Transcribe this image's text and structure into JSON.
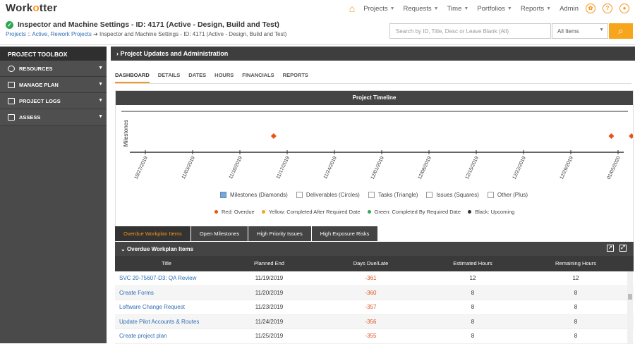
{
  "app": {
    "logo_prefix": "Work",
    "logo_o": "o",
    "logo_suffix": "tter"
  },
  "nav": {
    "items": [
      "Projects",
      "Requests",
      "Time",
      "Portfolios",
      "Reports"
    ],
    "user": "Admin"
  },
  "header": {
    "title": "Inspector and Machine Settings - ID: 4171 (Active - Design, Build and Test)",
    "crumb_root": "Projects",
    "crumb_sep": "::",
    "crumb_link": "Active, Rework Projects",
    "crumb_current": "Inspector and Machine Settings - ID: 4171 (Active - Design, Build and Test)"
  },
  "search": {
    "placeholder": "Search by ID, Title, Desc or Leave Blank (All)",
    "scope": "All Items"
  },
  "sidebar": {
    "title": "PROJECT TOOLBOX",
    "items": [
      {
        "label": "RESOURCES",
        "icon": "clock-icon"
      },
      {
        "label": "MANAGE PLAN",
        "icon": "plan-icon"
      },
      {
        "label": "PROJECT LOGS",
        "icon": "log-icon"
      },
      {
        "label": "ASSESS",
        "icon": "chart-icon"
      }
    ]
  },
  "section": {
    "title": "Project Updates and Administration"
  },
  "tabs": [
    "DASHBOARD",
    "DETAILS",
    "DATES",
    "HOURS",
    "FINANCIALS",
    "REPORTS"
  ],
  "timeline": {
    "title": "Project Timeline",
    "ylabel": "Milestones",
    "dates": [
      "10/27/2019",
      "11/03/2019",
      "11/10/2019",
      "11/17/2019",
      "11/24/2019",
      "12/01/2019",
      "12/08/2019",
      "12/15/2019",
      "12/22/2019",
      "12/29/2019",
      "01/05/2020"
    ],
    "milestones_color": "#e8521a",
    "filters": [
      {
        "label": "Milestones (Diamonds)",
        "checked": true
      },
      {
        "label": "Deliverables (Circles)",
        "checked": false
      },
      {
        "label": "Tasks (Triangle)",
        "checked": false
      },
      {
        "label": "Issues (Squares)",
        "checked": false
      },
      {
        "label": "Other (Plus)",
        "checked": false
      }
    ],
    "status_legend": [
      {
        "label": "Red: Overdue",
        "color": "#e8521a"
      },
      {
        "label": "Yellow: Completed After Required Date",
        "color": "#f7a51c"
      },
      {
        "label": "Green: Completed By Required Date",
        "color": "#2fa84f"
      },
      {
        "label": "Black: Upcoming",
        "color": "#333333"
      }
    ]
  },
  "grid_tabs": [
    "Overdue Workplan Items",
    "Open Milestones",
    "High Priority Issues",
    "High Exposure Risks"
  ],
  "grid": {
    "title": "Overdue Workplan Items",
    "columns": [
      "Title",
      "Planned End",
      "Days Due/Late",
      "Estimated Hours",
      "Remaining Hours"
    ],
    "rows": [
      {
        "title": "SVC 20-75607-D3: QA Review",
        "end": "11/19/2019",
        "late": "-361",
        "est": "12",
        "rem": "12"
      },
      {
        "title": "Create Forms",
        "end": "11/20/2019",
        "late": "-360",
        "est": "8",
        "rem": "8"
      },
      {
        "title": "Loftware Change Request",
        "end": "11/23/2019",
        "late": "-357",
        "est": "8",
        "rem": "8"
      },
      {
        "title": "Update Pilot Accounts & Routes",
        "end": "11/24/2019",
        "late": "-356",
        "est": "8",
        "rem": "8"
      },
      {
        "title": "Create project plan",
        "end": "11/25/2019",
        "late": "-355",
        "est": "8",
        "rem": "8"
      }
    ]
  }
}
